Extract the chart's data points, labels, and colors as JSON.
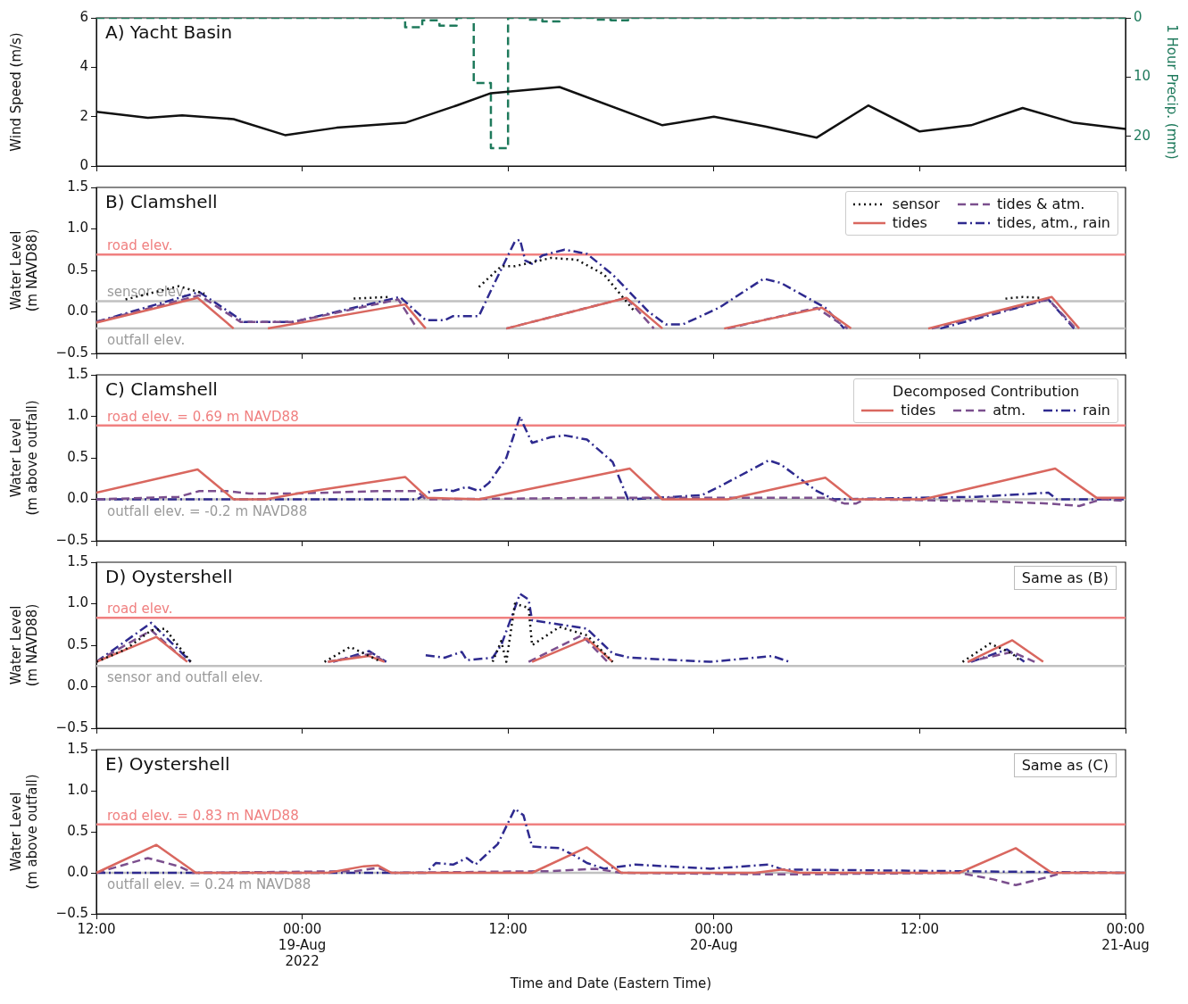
{
  "chart_data": [
    {
      "type": "line",
      "title": "A) Yacht Basin",
      "ylabel": "Wind Speed (m/s)",
      "y2label": "1 Hour Precip. (mm)",
      "xlim": [
        "2022-08-18T12:00",
        "2022-08-21T00:00"
      ],
      "xticks": [
        "2022-08-18T12:00",
        "2022-08-19T00:00",
        "2022-08-19T12:00",
        "2022-08-20T00:00",
        "2022-08-20T12:00",
        "2022-08-21T00:00"
      ],
      "ylim": [
        0,
        6
      ],
      "yticks": [
        0,
        2,
        4,
        6
      ],
      "y2lim": [
        25,
        0
      ],
      "y2ticks": [
        0,
        10,
        20
      ],
      "tick_labels": "y",
      "series": [
        {
          "type": "line",
          "color": "#111111",
          "line_style": "solid",
          "x": [
            "2022-08-18T12:00",
            "2022-08-18T15:00",
            "2022-08-18T17:00",
            "2022-08-18T20:00",
            "2022-08-18T23:00",
            "2022-08-19T02:00",
            "2022-08-19T06:00",
            "2022-08-19T09:00",
            "2022-08-19T11:00",
            "2022-08-19T15:00",
            "2022-08-19T21:00",
            "2022-08-20T00:00",
            "2022-08-20T03:00",
            "2022-08-20T06:00",
            "2022-08-20T09:00",
            "2022-08-20T12:00",
            "2022-08-20T15:00",
            "2022-08-20T18:00",
            "2022-08-20T21:00",
            "2022-08-21T00:00"
          ],
          "values": [
            2.2,
            1.95,
            2.05,
            1.9,
            1.25,
            1.55,
            1.75,
            2.45,
            2.95,
            3.2,
            1.65,
            2.0,
            1.6,
            1.15,
            2.45,
            1.4,
            1.65,
            2.35,
            1.75,
            1.5
          ]
        },
        {
          "type": "step",
          "color": "#1f7a5c",
          "line_style": "dashed",
          "axis": "y2",
          "x": [
            "2022-08-18T12:00",
            "2022-08-18T13:00",
            "2022-08-18T14:00",
            "2022-08-18T15:00",
            "2022-08-18T16:00",
            "2022-08-18T17:00",
            "2022-08-18T18:00",
            "2022-08-18T19:00",
            "2022-08-18T20:00",
            "2022-08-18T21:00",
            "2022-08-18T22:00",
            "2022-08-18T23:00",
            "2022-08-19T00:00",
            "2022-08-19T01:00",
            "2022-08-19T02:00",
            "2022-08-19T03:00",
            "2022-08-19T04:00",
            "2022-08-19T05:00",
            "2022-08-19T06:00",
            "2022-08-19T07:00",
            "2022-08-19T08:00",
            "2022-08-19T09:00",
            "2022-08-19T10:00",
            "2022-08-19T11:00",
            "2022-08-19T12:00",
            "2022-08-19T13:00",
            "2022-08-19T14:00",
            "2022-08-19T15:00",
            "2022-08-19T16:00",
            "2022-08-19T17:00",
            "2022-08-19T18:00",
            "2022-08-19T19:00",
            "2022-08-19T20:00",
            "2022-08-19T21:00",
            "2022-08-19T22:00",
            "2022-08-19T23:00",
            "2022-08-20T00:00",
            "2022-08-20T01:00",
            "2022-08-20T02:00",
            "2022-08-20T03:00",
            "2022-08-20T04:00",
            "2022-08-20T05:00",
            "2022-08-20T06:00",
            "2022-08-20T07:00",
            "2022-08-20T08:00",
            "2022-08-20T09:00",
            "2022-08-20T10:00",
            "2022-08-20T11:00",
            "2022-08-20T12:00",
            "2022-08-20T13:00",
            "2022-08-20T14:00",
            "2022-08-20T15:00",
            "2022-08-20T16:00",
            "2022-08-20T17:00",
            "2022-08-20T18:00",
            "2022-08-20T19:00",
            "2022-08-20T20:00",
            "2022-08-20T21:00",
            "2022-08-20T22:00",
            "2022-08-20T23:00",
            "2022-08-21T00:00"
          ],
          "values": [
            0,
            0,
            0,
            0,
            0,
            0,
            0,
            0,
            0,
            0,
            0,
            0,
            0,
            0,
            0,
            0,
            0,
            0,
            0,
            1.6,
            0.4,
            1.3,
            0,
            11,
            22,
            0,
            0.3,
            0.6,
            0,
            0,
            0.3,
            0.4,
            0,
            0,
            0,
            0,
            0,
            0,
            0,
            0,
            0,
            0,
            0,
            0,
            0,
            0,
            0,
            0,
            0,
            0,
            0,
            0,
            0,
            0,
            0,
            0,
            0,
            0,
            0,
            0,
            0
          ]
        }
      ]
    },
    {
      "type": "line",
      "title": "B) Clamshell",
      "ylabel": "Water Level\n(m NAVD88)",
      "xlim": [
        "2022-08-18T12:00",
        "2022-08-21T00:00"
      ],
      "xticks": [
        "2022-08-18T12:00",
        "2022-08-19T00:00",
        "2022-08-19T12:00",
        "2022-08-20T00:00",
        "2022-08-20T12:00",
        "2022-08-21T00:00"
      ],
      "ylim": [
        -0.5,
        1.5
      ],
      "yticks": [
        {
          "value": -0.5,
          "label": "−0.5"
        },
        {
          "value": 0,
          "label": "0.0"
        },
        0.5,
        {
          "value": 1,
          "label": "1.0"
        },
        1.5
      ],
      "tick_labels": "y",
      "legend": "top right",
      "ref_lines": [
        {
          "axis": "y",
          "value": 0.69,
          "label": "road elev.",
          "color": "#f08080"
        },
        {
          "axis": "y",
          "value": 0.13,
          "label": "sensor elev.",
          "color": "#c0c0c0"
        },
        {
          "axis": "y",
          "value": -0.2,
          "label": "outfall elev.",
          "color": "#c0c0c0"
        }
      ],
      "series": [
        {
          "name": "sensor",
          "color": "#111111",
          "line_style": "dotted",
          "x": [
            "2022-08-18T13:42",
            "2022-08-18T16:48",
            "2022-08-18T18:18",
            "2022-08-18T19:00",
            "2022-08-19T03:00",
            "2022-08-19T05:00",
            "2022-08-19T06:00",
            "2022-08-19T10:18",
            "2022-08-19T11:36",
            "2022-08-19T12:24",
            "2022-08-19T14:30",
            "2022-08-19T16:00",
            "2022-08-19T17:36",
            "2022-08-19T18:36",
            "2022-08-19T19:24",
            "2022-08-19T20:00",
            "2022-08-20T17:00",
            "2022-08-20T18:00",
            "2022-08-20T19:00"
          ],
          "values": [
            0.15,
            0.31,
            0.22,
            null,
            0.16,
            0.18,
            null,
            0.3,
            0.55,
            0.55,
            0.65,
            0.63,
            0.45,
            0.2,
            0,
            null,
            0.16,
            0.18,
            0.17
          ]
        },
        {
          "name": "tides",
          "color": "#d9675f",
          "line_style": "solid",
          "x": [
            "2022-08-18T12:00",
            "2022-08-18T17:54",
            "2022-08-18T20:00",
            "2022-08-18T21:00",
            "2022-08-18T22:00",
            "2022-08-19T06:00",
            "2022-08-19T07:12",
            "2022-08-19T08:00",
            "2022-08-19T11:54",
            "2022-08-19T18:54",
            "2022-08-19T21:00",
            "2022-08-19T22:00",
            "2022-08-20T00:36",
            "2022-08-20T06:18",
            "2022-08-20T08:00",
            "2022-08-20T10:00",
            "2022-08-20T12:30",
            "2022-08-20T19:42",
            "2022-08-20T21:18"
          ],
          "values": [
            -0.13,
            0.17,
            -0.2,
            null,
            -0.2,
            0.09,
            -0.2,
            null,
            -0.2,
            0.17,
            -0.2,
            null,
            -0.2,
            0.05,
            -0.2,
            null,
            -0.2,
            0.18,
            -0.2
          ]
        },
        {
          "name": "tides & atm.",
          "color": "#7b4f8e",
          "line_style": "dashed",
          "x": [
            "2022-08-18T12:00",
            "2022-08-18T18:00",
            "2022-08-18T20:24",
            "2022-08-18T23:30",
            "2022-08-19T05:36",
            "2022-08-19T06:42",
            "2022-08-19T07:00",
            "2022-08-19T11:54",
            "2022-08-19T18:54",
            "2022-08-19T20:30",
            "2022-08-19T21:00",
            "2022-08-20T00:48",
            "2022-08-20T06:00",
            "2022-08-20T07:48",
            "2022-08-20T09:00",
            "2022-08-20T12:42",
            "2022-08-20T19:30",
            "2022-08-20T21:06"
          ],
          "values": [
            -0.12,
            0.2,
            -0.12,
            -0.12,
            0.15,
            -0.2,
            null,
            -0.2,
            0.17,
            -0.2,
            null,
            -0.2,
            0.05,
            -0.2,
            null,
            -0.2,
            0.15,
            -0.2
          ]
        },
        {
          "name": "tides, atm., rain",
          "color": "#2e2a8f",
          "line_style": "dashdot",
          "x": [
            "2022-08-18T12:00",
            "2022-08-18T18:00",
            "2022-08-18T20:36",
            "2022-08-18T23:30",
            "2022-08-19T05:42",
            "2022-08-19T07:12",
            "2022-08-19T08:18",
            "2022-08-19T08:48",
            "2022-08-19T10:18",
            "2022-08-19T11:06",
            "2022-08-19T12:24",
            "2022-08-19T12:42",
            "2022-08-19T13:00",
            "2022-08-19T13:24",
            "2022-08-19T14:00",
            "2022-08-19T15:18",
            "2022-08-19T16:36",
            "2022-08-19T18:06",
            "2022-08-19T20:12",
            "2022-08-19T21:12",
            "2022-08-19T22:12",
            "2022-08-20T00:18",
            "2022-08-20T02:54",
            "2022-08-20T03:54",
            "2022-08-20T06:30",
            "2022-08-20T07:36",
            "2022-08-20T10:00",
            "2022-08-20T13:12",
            "2022-08-20T19:30",
            "2022-08-20T21:00"
          ],
          "values": [
            -0.12,
            0.24,
            -0.12,
            -0.12,
            0.18,
            -0.1,
            -0.1,
            -0.05,
            -0.05,
            0.3,
            0.85,
            0.87,
            0.62,
            0.58,
            0.68,
            0.75,
            0.7,
            0.45,
            0,
            -0.15,
            -0.15,
            0.05,
            0.4,
            0.35,
            0.05,
            -0.2,
            null,
            -0.2,
            0.15,
            -0.2
          ]
        }
      ]
    },
    {
      "type": "line",
      "title": "C) Clamshell",
      "ylabel": "Water Level\n(m above outfall)",
      "xlim": [
        "2022-08-18T12:00",
        "2022-08-21T00:00"
      ],
      "xticks": [
        "2022-08-18T12:00",
        "2022-08-19T00:00",
        "2022-08-19T12:00",
        "2022-08-20T00:00",
        "2022-08-20T12:00",
        "2022-08-21T00:00"
      ],
      "ylim": [
        -0.5,
        1.5
      ],
      "yticks": [
        {
          "value": -0.5,
          "label": "−0.5"
        },
        {
          "value": 0,
          "label": "0.0"
        },
        0.5,
        {
          "value": 1,
          "label": "1.0"
        },
        1.5
      ],
      "tick_labels": "y",
      "legend": "top right",
      "legend_title": "Decomposed Contribution",
      "ref_lines": [
        {
          "axis": "y",
          "value": 0.89,
          "color": "#f08080"
        },
        {
          "axis": "y",
          "value": 0,
          "color": "#c0c0c0"
        }
      ],
      "annotations": [
        {
          "text": "road elev. = 0.69 m NAVD88",
          "x": "2022-08-18T12:00",
          "y": 0.89
        },
        {
          "text": "outfall elev. = -0.2 m NAVD88",
          "x": "2022-08-18T12:00",
          "y": 0
        }
      ],
      "series": [
        {
          "name": "tides",
          "color": "#d9675f",
          "line_style": "solid",
          "x": [
            "2022-08-18T12:00",
            "2022-08-18T17:54",
            "2022-08-18T20:00",
            "2022-08-18T21:54",
            "2022-08-19T00:00",
            "2022-08-19T06:00",
            "2022-08-19T07:18",
            "2022-08-19T10:18",
            "2022-08-19T19:06",
            "2022-08-19T21:00",
            "2022-08-20T00:48",
            "2022-08-20T06:30",
            "2022-08-20T08:06",
            "2022-08-20T12:12",
            "2022-08-20T19:54",
            "2022-08-20T22:18",
            "2022-08-21T00:00"
          ],
          "values": [
            0.08,
            0.36,
            0,
            0,
            0.08,
            0.27,
            0.02,
            0,
            0.37,
            0,
            0,
            0.26,
            0,
            0,
            0.37,
            0.02,
            0.02
          ]
        },
        {
          "name": "atm.",
          "color": "#7b4f8e",
          "line_style": "dashed",
          "x": [
            "2022-08-18T12:00",
            "2022-08-18T16:48",
            "2022-08-18T18:00",
            "2022-08-18T19:36",
            "2022-08-18T20:54",
            "2022-08-18T23:30",
            "2022-08-19T04:42",
            "2022-08-19T06:42",
            "2022-08-19T07:12",
            "2022-08-19T18:36",
            "2022-08-19T21:12",
            "2022-08-20T06:30",
            "2022-08-20T07:36",
            "2022-08-20T08:18",
            "2022-08-20T08:48",
            "2022-08-20T15:18",
            "2022-08-20T19:30",
            "2022-08-20T21:18",
            "2022-08-20T22:36",
            "2022-08-21T00:00"
          ],
          "values": [
            0,
            0.03,
            0.1,
            0.1,
            0.07,
            0.07,
            0.1,
            0.1,
            0,
            0.02,
            0.02,
            0.02,
            -0.05,
            -0.05,
            0,
            -0.02,
            -0.05,
            -0.08,
            0,
            -0.02
          ]
        },
        {
          "name": "rain",
          "color": "#2e2a8f",
          "line_style": "dashdot",
          "x": [
            "2022-08-18T12:00",
            "2022-08-19T06:42",
            "2022-08-19T07:30",
            "2022-08-19T08:18",
            "2022-08-19T08:48",
            "2022-08-19T09:36",
            "2022-08-19T10:18",
            "2022-08-19T10:54",
            "2022-08-19T11:54",
            "2022-08-19T12:42",
            "2022-08-19T12:54",
            "2022-08-19T13:24",
            "2022-08-19T14:30",
            "2022-08-19T15:18",
            "2022-08-19T16:36",
            "2022-08-19T18:06",
            "2022-08-19T19:00",
            "2022-08-19T21:42",
            "2022-08-19T23:18",
            "2022-08-20T00:18",
            "2022-08-20T03:12",
            "2022-08-20T03:54",
            "2022-08-20T06:00",
            "2022-08-20T07:00",
            "2022-08-20T15:18",
            "2022-08-20T19:30",
            "2022-08-20T20:00",
            "2022-08-21T00:00"
          ],
          "values": [
            0,
            0,
            0.1,
            0.12,
            0.1,
            0.15,
            0.1,
            0.2,
            0.5,
            1.0,
            0.9,
            0.68,
            0.75,
            0.77,
            0.72,
            0.45,
            0,
            0.03,
            0.05,
            0.15,
            0.47,
            0.42,
            0.1,
            0,
            0.03,
            0.08,
            0,
            0
          ]
        }
      ]
    },
    {
      "type": "line",
      "title": "D) Oystershell",
      "ylabel": "Water Level\n(m NAVD88)",
      "xlim": [
        "2022-08-18T12:00",
        "2022-08-21T00:00"
      ],
      "xticks": [
        "2022-08-18T12:00",
        "2022-08-19T00:00",
        "2022-08-19T12:00",
        "2022-08-20T00:00",
        "2022-08-20T12:00",
        "2022-08-21T00:00"
      ],
      "ylim": [
        -0.5,
        1.5
      ],
      "yticks": [
        {
          "value": -0.5,
          "label": "−0.5"
        },
        {
          "value": 0,
          "label": "0.0"
        },
        0.5,
        {
          "value": 1,
          "label": "1.0"
        },
        1.5
      ],
      "tick_labels": "y",
      "annotations": [
        "Same as (B)"
      ],
      "ref_lines": [
        {
          "axis": "y",
          "value": 0.83,
          "label": "road elev.",
          "color": "#f08080"
        },
        {
          "axis": "y",
          "value": 0.25,
          "label": "sensor and outfall elev.",
          "color": "#c0c0c0"
        }
      ],
      "series": [
        {
          "color": "#111111",
          "line_style": "dotted",
          "x": [
            "2022-08-18T12:00",
            "2022-08-18T13:42",
            "2022-08-18T15:12",
            "2022-08-18T16:00",
            "2022-08-18T17:30",
            "2022-08-18T18:00",
            "2022-08-19T01:18",
            "2022-08-19T02:48",
            "2022-08-19T04:06",
            "2022-08-19T04:36",
            "2022-08-19T05:00",
            "2022-08-19T11:06",
            "2022-08-19T11:36",
            "2022-08-19T11:54",
            "2022-08-19T12:24",
            "2022-08-19T13:12",
            "2022-08-19T13:24",
            "2022-08-19T15:00",
            "2022-08-19T16:36",
            "2022-08-19T18:06",
            "2022-08-19T19:00",
            "2022-08-20T14:30",
            "2022-08-20T16:06",
            "2022-08-20T17:24",
            "2022-08-20T17:54"
          ],
          "values": [
            0.3,
            0.45,
            0.68,
            0.7,
            0.3,
            null,
            0.3,
            0.48,
            0.35,
            0.3,
            null,
            0.3,
            0.55,
            0.3,
            1.0,
            0.95,
            0.5,
            0.72,
            0.62,
            0.3,
            null,
            0.3,
            0.52,
            0.4,
            0.3
          ]
        },
        {
          "color": "#d9675f",
          "line_style": "solid",
          "x": [
            "2022-08-18T12:00",
            "2022-08-18T15:30",
            "2022-08-18T17:18",
            "2022-08-18T18:00",
            "2022-08-19T01:30",
            "2022-08-19T03:54",
            "2022-08-19T04:48",
            "2022-08-19T06:00",
            "2022-08-19T13:24",
            "2022-08-19T16:36",
            "2022-08-19T18:06",
            "2022-08-19T19:00",
            "2022-08-20T14:48",
            "2022-08-20T17:24",
            "2022-08-20T19:12"
          ],
          "values": [
            0.3,
            0.6,
            0.3,
            null,
            0.3,
            0.37,
            0.3,
            null,
            0.3,
            0.58,
            0.3,
            null,
            0.3,
            0.56,
            0.3
          ]
        },
        {
          "color": "#7b4f8e",
          "line_style": "dashed",
          "x": [
            "2022-08-18T12:00",
            "2022-08-18T15:12",
            "2022-08-18T17:00",
            "2022-08-18T17:30",
            "2022-08-18T18:00",
            "2022-08-19T01:30",
            "2022-08-19T04:06",
            "2022-08-19T04:48",
            "2022-08-19T06:00",
            "2022-08-19T13:12",
            "2022-08-19T16:18",
            "2022-08-19T17:48",
            "2022-08-19T19:00",
            "2022-08-20T14:48",
            "2022-08-20T17:24",
            "2022-08-20T18:42"
          ],
          "values": [
            0.3,
            0.68,
            0.35,
            0.3,
            null,
            0.3,
            0.4,
            0.3,
            null,
            0.3,
            0.62,
            0.3,
            null,
            0.3,
            0.42,
            0.3
          ]
        },
        {
          "color": "#2e2a8f",
          "line_style": "dashdot",
          "x": [
            "2022-08-18T12:00",
            "2022-08-18T15:12",
            "2022-08-18T17:30",
            "2022-08-18T18:00",
            "2022-08-19T01:48",
            "2022-08-19T03:54",
            "2022-08-19T04:54",
            "2022-08-19T06:00",
            "2022-08-19T07:12",
            "2022-08-19T08:18",
            "2022-08-19T09:18",
            "2022-08-19T09:36",
            "2022-08-19T11:06",
            "2022-08-19T11:36",
            "2022-08-19T12:42",
            "2022-08-19T13:12",
            "2022-08-19T13:24",
            "2022-08-19T15:00",
            "2022-08-19T16:36",
            "2022-08-19T18:06",
            "2022-08-19T19:06",
            "2022-08-19T23:48",
            "2022-08-20T03:24",
            "2022-08-20T04:24",
            "2022-08-20T05:00",
            "2022-08-20T15:00",
            "2022-08-20T17:06",
            "2022-08-20T18:06"
          ],
          "values": [
            0.3,
            0.77,
            0.3,
            null,
            0.3,
            0.43,
            0.3,
            null,
            0.38,
            0.35,
            0.42,
            0.32,
            0.35,
            0.5,
            1.12,
            1.05,
            0.8,
            0.75,
            0.7,
            0.4,
            0.35,
            0.3,
            0.37,
            0.3,
            null,
            0.3,
            0.45,
            0.3
          ]
        }
      ]
    },
    {
      "type": "line",
      "title": "E) Oystershell",
      "ylabel": "Water Level\n(m above outfall)",
      "xlabel": "Time and Date (Eastern Time)",
      "xlim": [
        "2022-08-18T12:00",
        "2022-08-21T00:00"
      ],
      "xticks": [
        {
          "value": "2022-08-18T12:00",
          "label": "12:00"
        },
        {
          "value": "2022-08-19T00:00",
          "label": "00:00\n19-Aug\n2022"
        },
        {
          "value": "2022-08-19T12:00",
          "label": "12:00"
        },
        {
          "value": "2022-08-20T00:00",
          "label": "00:00\n20-Aug"
        },
        {
          "value": "2022-08-20T12:00",
          "label": "12:00"
        },
        {
          "value": "2022-08-21T00:00",
          "label": "00:00\n21-Aug"
        }
      ],
      "ylim": [
        -0.5,
        1.5
      ],
      "yticks": [
        {
          "value": -0.5,
          "label": "−0.5"
        },
        {
          "value": 0,
          "label": "0.0"
        },
        0.5,
        {
          "value": 1,
          "label": "1.0"
        },
        1.5
      ],
      "annotations": [
        "Same as (C)",
        {
          "text": "road elev. = 0.83 m NAVD88",
          "x": "2022-08-18T12:00",
          "y": 0.59
        },
        {
          "text": "outfall elev. = 0.24 m NAVD88",
          "x": "2022-08-18T12:00",
          "y": 0
        }
      ],
      "ref_lines": [
        {
          "axis": "y",
          "value": 0.59,
          "color": "#f08080"
        },
        {
          "axis": "y",
          "value": 0,
          "color": "#c0c0c0"
        }
      ],
      "series": [
        {
          "color": "#d9675f",
          "line_style": "solid",
          "x": [
            "2022-08-18T12:00",
            "2022-08-18T15:30",
            "2022-08-18T17:48",
            "2022-08-19T01:30",
            "2022-08-19T03:36",
            "2022-08-19T04:24",
            "2022-08-19T05:12",
            "2022-08-19T13:24",
            "2022-08-19T16:36",
            "2022-08-19T18:36",
            "2022-08-20T02:24",
            "2022-08-20T04:00",
            "2022-08-20T05:00",
            "2022-08-20T14:18",
            "2022-08-20T17:36",
            "2022-08-20T19:42",
            "2022-08-21T00:00"
          ],
          "values": [
            0,
            0.34,
            0,
            0,
            0.08,
            0.09,
            0,
            0,
            0.31,
            0,
            0,
            0.04,
            0,
            0,
            0.3,
            0,
            0
          ]
        },
        {
          "color": "#7b4f8e",
          "line_style": "dashed",
          "x": [
            "2022-08-18T12:00",
            "2022-08-18T15:00",
            "2022-08-18T16:48",
            "2022-08-18T17:36",
            "2022-08-19T03:06",
            "2022-08-19T04:24",
            "2022-08-19T05:12",
            "2022-08-19T14:30",
            "2022-08-19T17:06",
            "2022-08-19T18:36",
            "2022-08-20T04:00",
            "2022-08-20T14:18",
            "2022-08-20T16:18",
            "2022-08-20T17:36",
            "2022-08-20T19:30",
            "2022-08-20T20:18",
            "2022-08-21T00:00"
          ],
          "values": [
            0,
            0.18,
            0.08,
            0,
            0.02,
            0.06,
            0,
            0.02,
            0.05,
            0,
            -0.02,
            0,
            -0.08,
            -0.15,
            -0.05,
            0,
            0
          ]
        },
        {
          "color": "#2e2a8f",
          "line_style": "dashdot",
          "x": [
            "2022-08-18T12:00",
            "2022-08-19T07:12",
            "2022-08-19T07:48",
            "2022-08-19T08:48",
            "2022-08-19T09:36",
            "2022-08-19T10:06",
            "2022-08-19T11:24",
            "2022-08-19T12:24",
            "2022-08-19T12:54",
            "2022-08-19T13:24",
            "2022-08-19T15:00",
            "2022-08-19T15:48",
            "2022-08-19T16:36",
            "2022-08-19T17:36",
            "2022-08-19T19:24",
            "2022-08-19T23:48",
            "2022-08-20T03:12",
            "2022-08-20T04:00",
            "2022-08-21T00:00"
          ],
          "values": [
            0,
            0,
            0.12,
            0.1,
            0.18,
            0.1,
            0.35,
            0.78,
            0.7,
            0.32,
            0.3,
            0.22,
            0.12,
            0.05,
            0.1,
            0.05,
            0.1,
            0.04,
            0
          ]
        }
      ]
    }
  ]
}
